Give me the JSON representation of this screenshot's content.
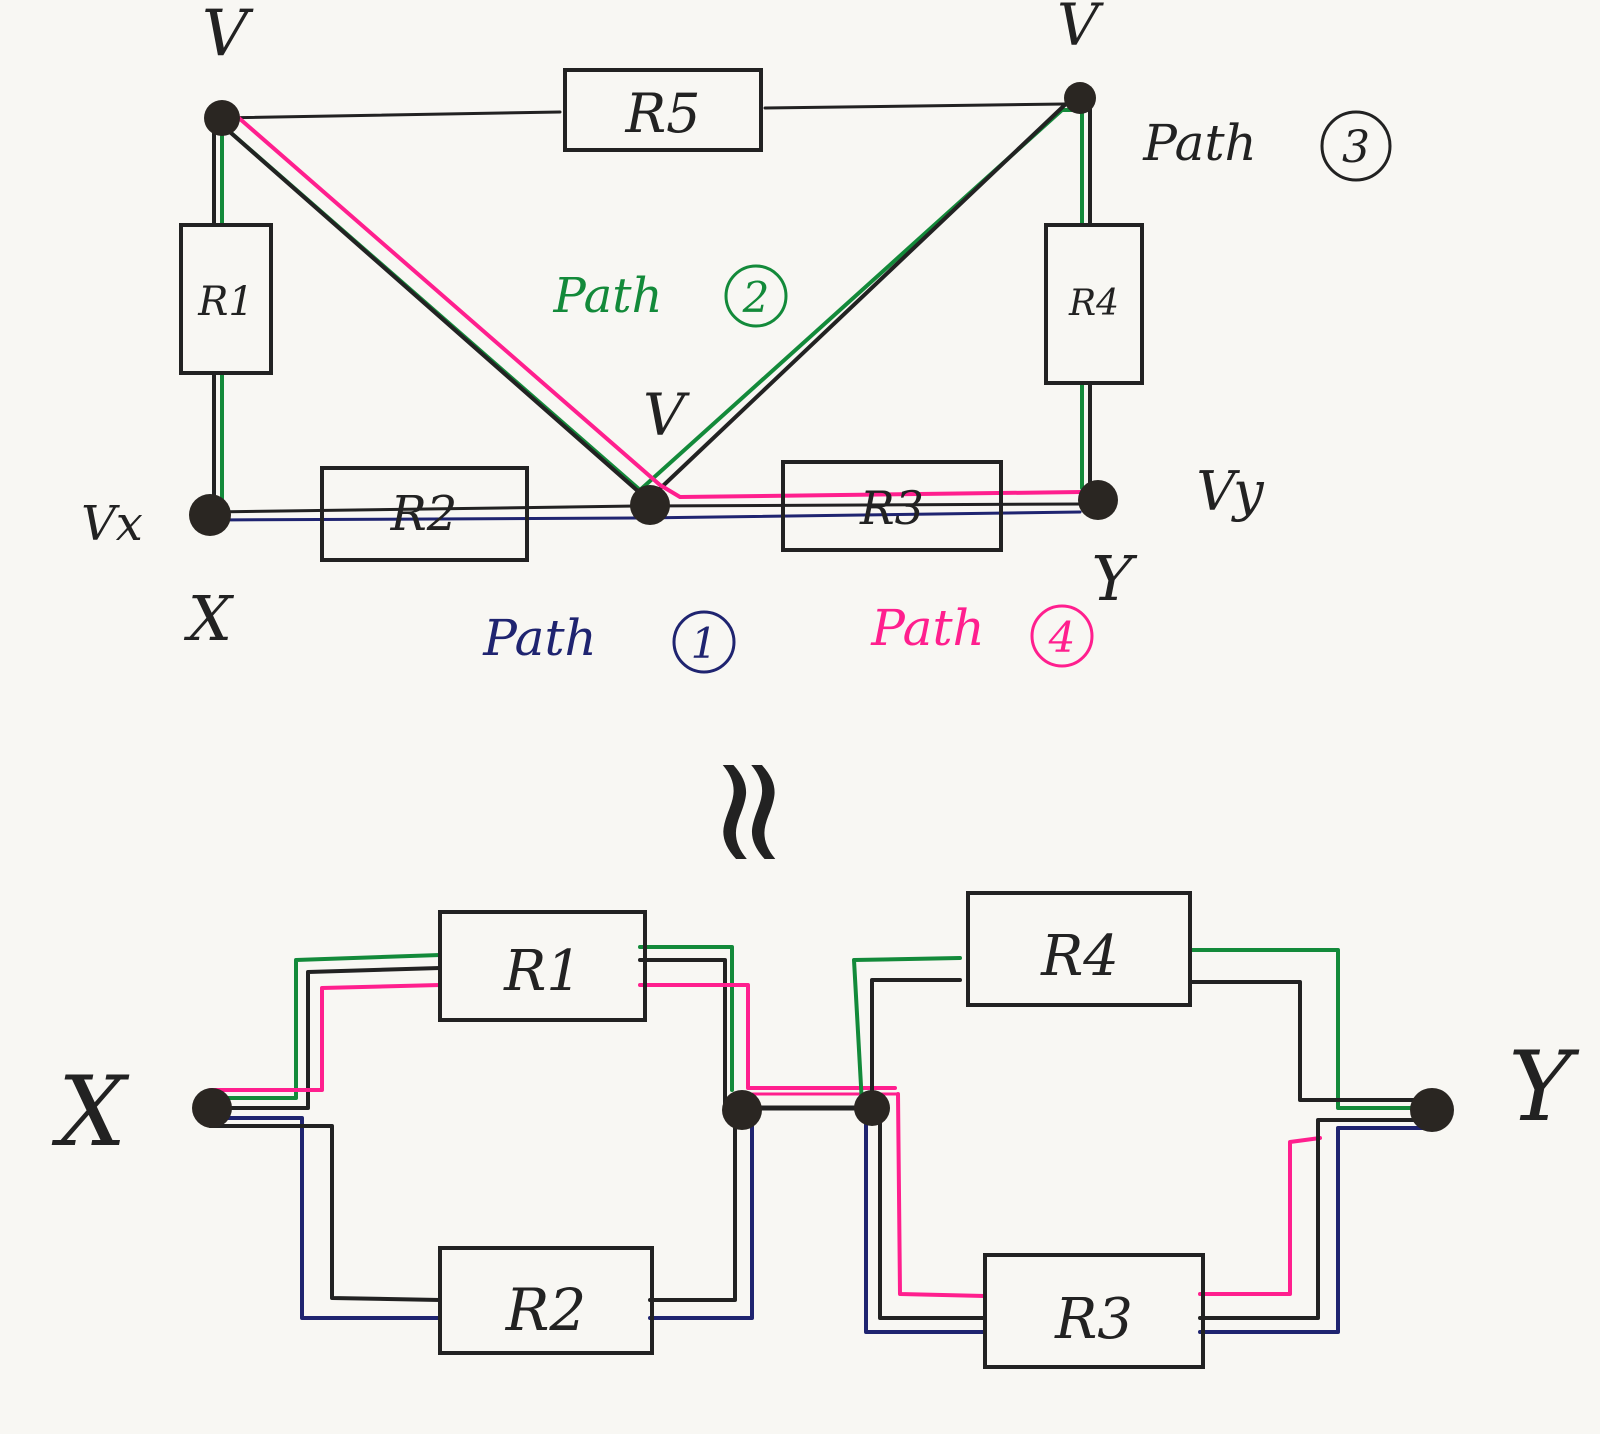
{
  "colors": {
    "ink": "#222222",
    "path1": "#1f2470",
    "path2": "#138a3a",
    "path3": "#222222",
    "path4": "#ff1f8e",
    "paper": "#f8f7f3"
  },
  "top_circuit": {
    "node_labels": {
      "top_left": "V",
      "top_right": "V",
      "middle": "V",
      "left": "Vx",
      "right": "Vy",
      "left_name": "X",
      "right_name": "Y"
    },
    "resistors": {
      "r1": "R1",
      "r2": "R2",
      "r3": "R3",
      "r4": "R4",
      "r5": "R5"
    },
    "paths": [
      {
        "word": "Path",
        "number": "1",
        "color": "#1f2470"
      },
      {
        "word": "Path",
        "number": "2",
        "color": "#138a3a"
      },
      {
        "word": "Path",
        "number": "3",
        "color": "#222222"
      },
      {
        "word": "Path",
        "number": "4",
        "color": "#ff1f8e"
      }
    ]
  },
  "equivalence_symbol": "≈",
  "bottom_circuit": {
    "left_terminal": "X",
    "right_terminal": "Y",
    "resistors": {
      "r1": "R1",
      "r2": "R2",
      "r3": "R3",
      "r4": "R4"
    }
  }
}
